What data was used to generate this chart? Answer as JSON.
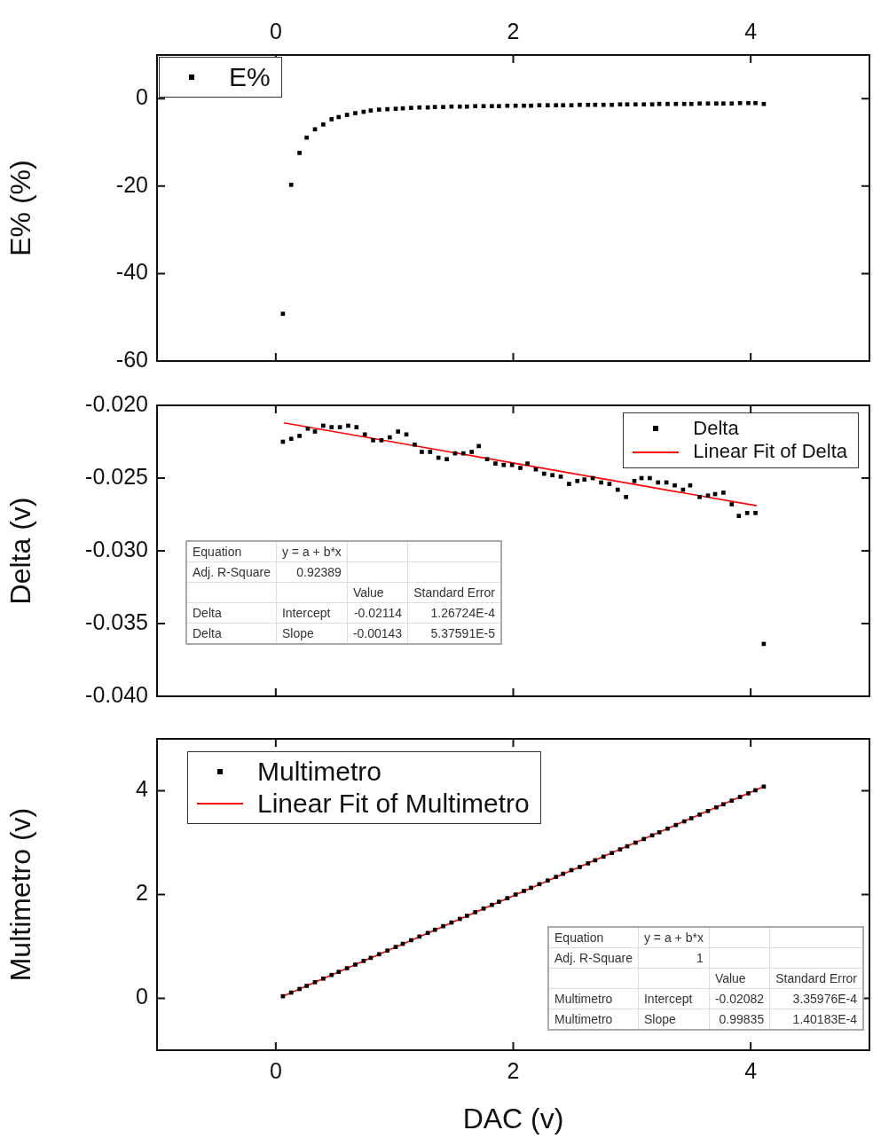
{
  "chart_data": [
    {
      "type": "scatter",
      "ylabel": "E% (%)",
      "xlim": [
        -1,
        5
      ],
      "xticks": [
        0,
        2,
        4
      ],
      "ylim": [
        -60,
        10
      ],
      "yticks": [
        -60,
        -40,
        -20,
        0
      ],
      "grid": false,
      "legend": "top left",
      "marker": "square",
      "series": [
        {
          "name": "E%",
          "color": "#000000",
          "x": [
            0.06,
            0.13,
            0.2,
            0.26,
            0.33,
            0.4,
            0.47,
            0.53,
            0.6,
            0.67,
            0.74,
            0.8,
            0.87,
            0.94,
            1.01,
            1.07,
            1.14,
            1.21,
            1.28,
            1.34,
            1.41,
            1.48,
            1.55,
            1.61,
            1.68,
            1.75,
            1.82,
            1.88,
            1.95,
            2.02,
            2.09,
            2.15,
            2.22,
            2.29,
            2.36,
            2.42,
            2.49,
            2.56,
            2.63,
            2.69,
            2.76,
            2.83,
            2.9,
            2.96,
            3.03,
            3.1,
            3.17,
            3.23,
            3.3,
            3.37,
            3.44,
            3.5,
            3.57,
            3.64,
            3.71,
            3.77,
            3.84,
            3.91,
            3.98,
            4.04,
            4.11
          ],
          "values": [
            -49.2,
            -19.7,
            -12.4,
            -8.9,
            -7.0,
            -5.9,
            -4.7,
            -4.2,
            -3.7,
            -3.3,
            -3.0,
            -2.7,
            -2.5,
            -2.4,
            -2.3,
            -2.2,
            -2.1,
            -2.0,
            -2.0,
            -1.9,
            -1.9,
            -1.8,
            -1.8,
            -1.8,
            -1.7,
            -1.7,
            -1.7,
            -1.7,
            -1.6,
            -1.6,
            -1.6,
            -1.6,
            -1.5,
            -1.5,
            -1.5,
            -1.5,
            -1.5,
            -1.4,
            -1.4,
            -1.4,
            -1.4,
            -1.4,
            -1.3,
            -1.3,
            -1.3,
            -1.3,
            -1.3,
            -1.2,
            -1.2,
            -1.2,
            -1.2,
            -1.2,
            -1.1,
            -1.1,
            -1.1,
            -1.1,
            -1.1,
            -1.0,
            -1.0,
            -1.0,
            -1.2
          ]
        }
      ]
    },
    {
      "type": "scatter",
      "ylabel": "Delta (v)",
      "xlim": [
        -1,
        5
      ],
      "xticks": [
        0,
        2,
        4
      ],
      "ylim": [
        -0.04,
        -0.02
      ],
      "yticks": [
        {
          "value": -0.04,
          "label": "-0.040"
        },
        -0.035,
        {
          "value": -0.03,
          "label": "-0.030"
        },
        -0.025,
        {
          "value": -0.02,
          "label": "-0.020"
        }
      ],
      "tick_labels": "y",
      "grid": false,
      "legend": "top right",
      "marker": "square",
      "series": [
        {
          "name": "Delta",
          "color": "#000000",
          "x": [
            0.06,
            0.13,
            0.2,
            0.27,
            0.33,
            0.4,
            0.47,
            0.54,
            0.61,
            0.68,
            0.75,
            0.82,
            0.89,
            0.96,
            1.03,
            1.1,
            1.17,
            1.23,
            1.3,
            1.37,
            1.44,
            1.51,
            1.58,
            1.65,
            1.71,
            1.78,
            1.85,
            1.92,
            1.99,
            2.06,
            2.12,
            2.19,
            2.26,
            2.33,
            2.4,
            2.47,
            2.54,
            2.6,
            2.67,
            2.74,
            2.81,
            2.88,
            2.95,
            3.02,
            3.08,
            3.15,
            3.22,
            3.29,
            3.36,
            3.43,
            3.49,
            3.57,
            3.64,
            3.7,
            3.77,
            3.84,
            3.9,
            3.97,
            4.04,
            4.11
          ],
          "values": [
            -0.0225,
            -0.0223,
            -0.0221,
            -0.0216,
            -0.0218,
            -0.0214,
            -0.0215,
            -0.0215,
            -0.0214,
            -0.0215,
            -0.022,
            -0.0224,
            -0.0224,
            -0.0222,
            -0.0218,
            -0.022,
            -0.0227,
            -0.0232,
            -0.0232,
            -0.0236,
            -0.0237,
            -0.0233,
            -0.0233,
            -0.0232,
            -0.0228,
            -0.0237,
            -0.024,
            -0.0241,
            -0.0241,
            -0.0243,
            -0.024,
            -0.0244,
            -0.0247,
            -0.0248,
            -0.0249,
            -0.0254,
            -0.0252,
            -0.0251,
            -0.025,
            -0.0253,
            -0.0254,
            -0.0258,
            -0.0263,
            -0.0252,
            -0.025,
            -0.025,
            -0.0253,
            -0.0253,
            -0.0255,
            -0.0258,
            -0.0255,
            -0.0263,
            -0.0262,
            -0.0261,
            -0.026,
            -0.0268,
            -0.0276,
            -0.0274,
            -0.0274,
            -0.0364
          ]
        },
        {
          "name": "Linear Fit of Delta",
          "type": "line",
          "marker": "none",
          "color": "#ff0000",
          "x": [
            0.07,
            4.05
          ],
          "values": [
            -0.0212,
            -0.0269
          ]
        }
      ],
      "annotations": [
        "Equation",
        "y = a + b*x",
        "Adj. R-Square",
        "0.92389",
        "Value",
        "Standard Error",
        "Delta",
        "Intercept",
        "-0.02114",
        "1.26724E-4",
        "Delta",
        "Slope",
        "-0.00143",
        "5.37591E-5"
      ]
    },
    {
      "type": "scatter",
      "xlabel": "DAC (v)",
      "ylabel": "Multimetro (v)",
      "xlim": [
        -1,
        5
      ],
      "xticks": [
        0,
        2,
        4
      ],
      "ylim": [
        -1,
        5
      ],
      "yticks": [
        0,
        2,
        4
      ],
      "grid": false,
      "legend": "top left",
      "marker": "square",
      "series": [
        {
          "name": "Multimetro",
          "color": "#000000",
          "x": [
            0.06,
            0.13,
            0.2,
            0.26,
            0.33,
            0.4,
            0.47,
            0.53,
            0.6,
            0.67,
            0.74,
            0.8,
            0.87,
            0.94,
            1.01,
            1.07,
            1.14,
            1.21,
            1.28,
            1.34,
            1.41,
            1.48,
            1.55,
            1.61,
            1.68,
            1.75,
            1.82,
            1.88,
            1.95,
            2.02,
            2.09,
            2.15,
            2.22,
            2.29,
            2.36,
            2.42,
            2.49,
            2.56,
            2.63,
            2.69,
            2.76,
            2.83,
            2.9,
            2.96,
            3.03,
            3.1,
            3.17,
            3.23,
            3.3,
            3.37,
            3.44,
            3.5,
            3.57,
            3.64,
            3.71,
            3.77,
            3.84,
            3.91,
            3.98,
            4.04,
            4.11
          ],
          "values": [
            0.04,
            0.11,
            0.18,
            0.24,
            0.31,
            0.38,
            0.45,
            0.51,
            0.58,
            0.65,
            0.72,
            0.78,
            0.85,
            0.92,
            0.99,
            1.05,
            1.12,
            1.19,
            1.26,
            1.32,
            1.39,
            1.46,
            1.53,
            1.59,
            1.66,
            1.73,
            1.8,
            1.86,
            1.93,
            2.0,
            2.07,
            2.13,
            2.2,
            2.27,
            2.34,
            2.4,
            2.47,
            2.53,
            2.6,
            2.66,
            2.73,
            2.8,
            2.87,
            2.93,
            3.0,
            3.07,
            3.14,
            3.2,
            3.27,
            3.34,
            3.41,
            3.47,
            3.54,
            3.61,
            3.68,
            3.74,
            3.81,
            3.88,
            3.95,
            4.01,
            4.08
          ]
        },
        {
          "name": "Linear Fit of Multimetro",
          "type": "line",
          "marker": "none",
          "color": "#ff0000",
          "x": [
            0.05,
            4.11
          ],
          "values": [
            0.03,
            4.08
          ]
        }
      ],
      "annotations": [
        "Equation",
        "y = a + b*x",
        "Adj. R-Square",
        "1",
        "Value",
        "Standard Error",
        "Multimetro",
        "Intercept",
        "-0.02082",
        "3.35976E-4",
        "Multimetro",
        "Slope",
        "0.99835",
        "1.40183E-4"
      ]
    }
  ]
}
